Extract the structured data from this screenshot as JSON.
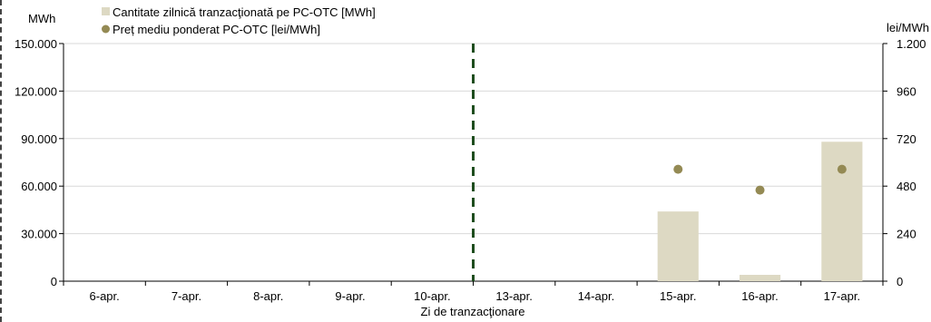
{
  "chart_data": {
    "type": "bar",
    "categories": [
      "6-apr.",
      "7-apr.",
      "8-apr.",
      "9-apr.",
      "10-apr.",
      "13-apr.",
      "14-apr.",
      "15-apr.",
      "16-apr.",
      "17-apr."
    ],
    "xlabel": "Zi de tranzacţionare",
    "y_left": {
      "unit": "MWh",
      "ylim": [
        0,
        150000
      ],
      "ticks": [
        0,
        30000,
        60000,
        90000,
        120000,
        150000
      ],
      "tick_labels": [
        "0",
        "30.000",
        "60.000",
        "90.000",
        "120.000",
        "150.000"
      ]
    },
    "y_right": {
      "unit": "lei/MWh",
      "ylim": [
        0,
        1200
      ],
      "ticks": [
        0,
        240,
        480,
        720,
        960,
        1200
      ],
      "tick_labels": [
        "0",
        "240",
        "480",
        "720",
        "960",
        "1.200"
      ]
    },
    "series": [
      {
        "name": "Cantitate zilnică tranzacţionată pe PC-OTC [MWh]",
        "kind": "bar",
        "axis": "left",
        "color": "#ddd9c3",
        "values": [
          null,
          null,
          null,
          null,
          null,
          null,
          null,
          44000,
          4000,
          88000
        ]
      },
      {
        "name": "Preț mediu ponderat PC-OTC [lei/MWh]",
        "kind": "scatter",
        "axis": "right",
        "color": "#948a54",
        "values": [
          null,
          null,
          null,
          null,
          null,
          null,
          null,
          565,
          460,
          565
        ]
      }
    ],
    "divider": {
      "after_category_index": 4,
      "style": "dashed",
      "color": "#1e4d1e"
    },
    "grid": true,
    "legend_position": "top-left"
  }
}
